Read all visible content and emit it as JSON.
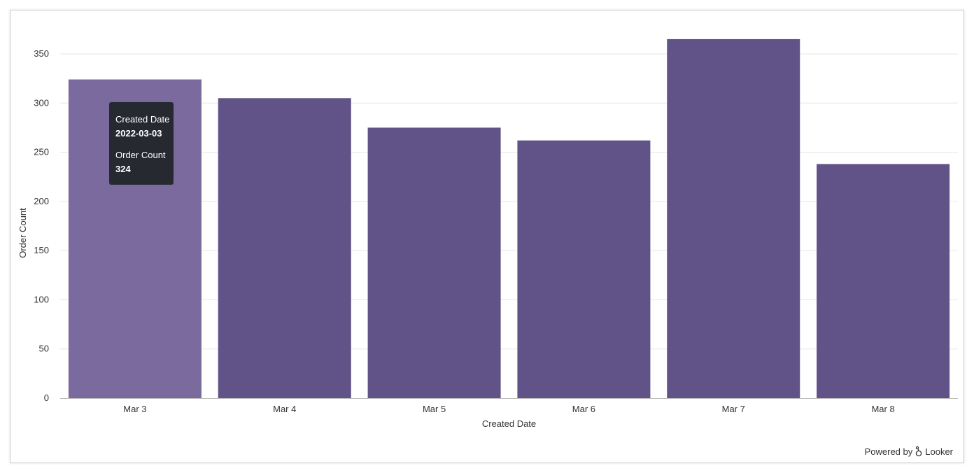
{
  "chart_data": {
    "type": "bar",
    "categories": [
      "Mar 3",
      "Mar 4",
      "Mar 5",
      "Mar 6",
      "Mar 7",
      "Mar 8"
    ],
    "values": [
      324,
      305,
      275,
      262,
      365,
      238
    ],
    "xlabel": "Created Date",
    "ylabel": "Order Count",
    "ylim": [
      0,
      350
    ],
    "yticks": [
      0,
      50,
      100,
      150,
      200,
      250,
      300,
      350
    ],
    "grid": true,
    "bar_color": "#615387",
    "highlight_color": "#7a6a9d",
    "highlighted_index": 0
  },
  "tooltip": {
    "label1": "Created Date",
    "value1": "2022-03-03",
    "label2": "Order Count",
    "value2": "324"
  },
  "footer": {
    "powered_by": "Powered by",
    "brand": "Looker"
  }
}
